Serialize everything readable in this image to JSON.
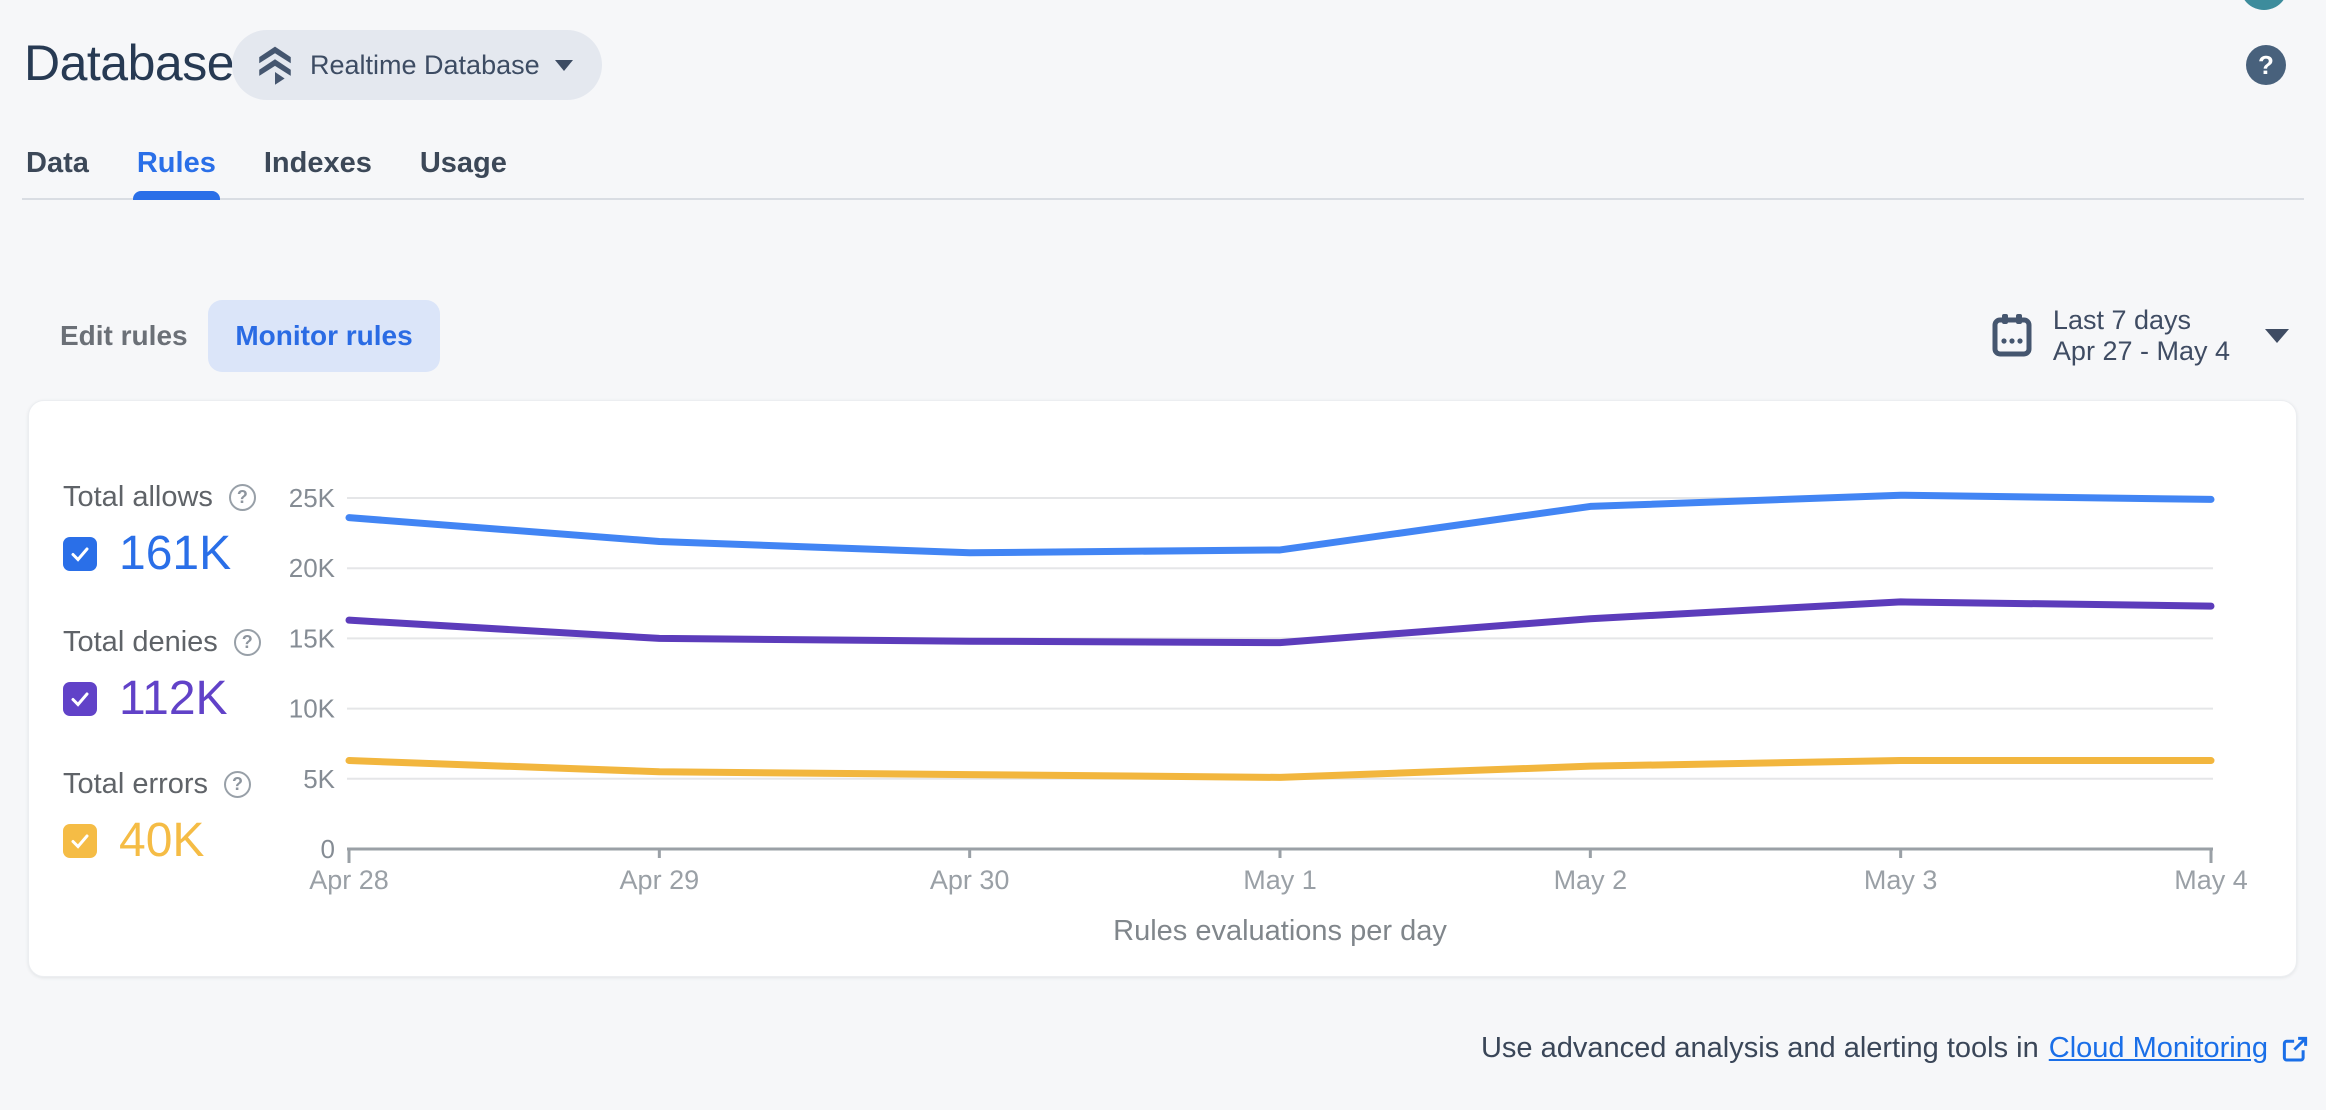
{
  "header": {
    "title": "Database",
    "database_selector": {
      "label": "Realtime Database"
    },
    "help_glyph": "?"
  },
  "tabs": [
    {
      "label": "Data",
      "active": false
    },
    {
      "label": "Rules",
      "active": true
    },
    {
      "label": "Indexes",
      "active": false
    },
    {
      "label": "Usage",
      "active": false
    }
  ],
  "toolbar": {
    "edit_rules_label": "Edit rules",
    "monitor_rules_label": "Monitor rules",
    "date_range": {
      "line1": "Last 7 days",
      "line2": "Apr 27 - May 4"
    }
  },
  "legend": [
    {
      "label": "Total allows",
      "value": "161K",
      "color": "#2a6fe8",
      "checked": true
    },
    {
      "label": "Total denies",
      "value": "112K",
      "color": "#6142c8",
      "checked": true
    },
    {
      "label": "Total errors",
      "value": "40K",
      "color": "#f5bc45",
      "checked": true
    }
  ],
  "chart_data": {
    "type": "line",
    "title": "Rules evaluations per day",
    "x": [
      "Apr 28",
      "Apr 29",
      "Apr 30",
      "May 1",
      "May 2",
      "May 3",
      "May 4"
    ],
    "series": [
      {
        "name": "Total allows",
        "color": "#4285f4",
        "values": [
          23600,
          21900,
          21100,
          21300,
          24400,
          25200,
          24900
        ]
      },
      {
        "name": "Total denies",
        "color": "#5c3cbb",
        "values": [
          16300,
          15000,
          14800,
          14700,
          16400,
          17600,
          17300
        ]
      },
      {
        "name": "Total errors",
        "color": "#f2b63e",
        "values": [
          6300,
          5500,
          5300,
          5100,
          5900,
          6300,
          6300
        ]
      }
    ],
    "ylim": [
      0,
      25000
    ],
    "yticks": [
      "0",
      "5K",
      "10K",
      "15K",
      "20K",
      "25K"
    ],
    "grid": true,
    "legend_position": "left",
    "colors": {
      "gridline": "#e5e6e8",
      "axis": "#9aa0a6",
      "tick_label": "#9aa0a6",
      "y_label": "#858c94"
    }
  },
  "footer": {
    "text": "Use advanced analysis and alerting tools in",
    "link_label": "Cloud Monitoring"
  }
}
